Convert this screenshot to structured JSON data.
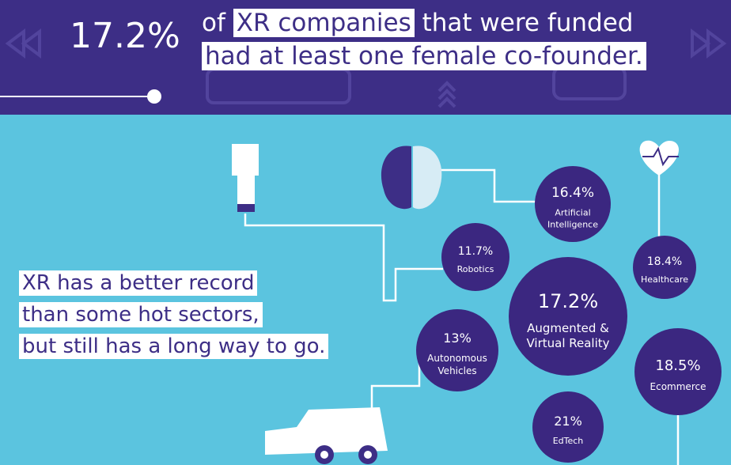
{
  "header": {
    "stat": "17.2%",
    "line1_pre": "of",
    "line1_highlight": "XR companies",
    "line1_post": "that were funded",
    "line2": "had at least one female co-founder."
  },
  "message": {
    "lines": [
      "XR has a better record",
      "than some hot sectors,",
      "but still has a long way to go."
    ]
  },
  "bubbles": [
    {
      "value": "16.4%",
      "label": [
        "Artificial",
        "Intelligence"
      ]
    },
    {
      "value": "11.7%",
      "label": [
        "Robotics"
      ]
    },
    {
      "value": "18.4%",
      "label": [
        "Healthcare"
      ]
    },
    {
      "value": "17.2%",
      "label": [
        "Augmented &",
        "Virtual Reality"
      ]
    },
    {
      "value": "13%",
      "label": [
        "Autonomous",
        "Vehicles"
      ]
    },
    {
      "value": "18.5%",
      "label": [
        "Ecommerce"
      ]
    },
    {
      "value": "21%",
      "label": [
        "EdTech"
      ]
    }
  ]
}
